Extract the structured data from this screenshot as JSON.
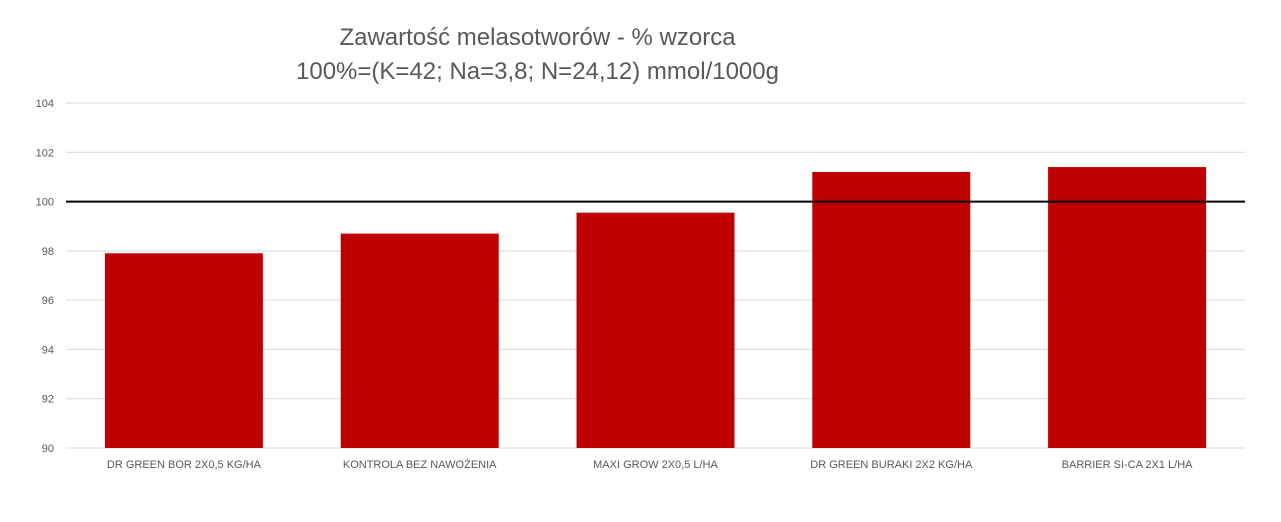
{
  "chart_data": {
    "type": "bar",
    "title": "Zawartość melasotworów - % wzorca",
    "subtitle": "100%=(K=42; Na=3,8; N=24,12) mmol/1000g",
    "categories": [
      "DR GREEN BOR 2X0,5 KG/HA",
      "KONTROLA BEZ NAWOŻENIA",
      "MAXI GROW 2X0,5 L/HA",
      "DR GREEN BURAKI 2X2 KG/HA",
      "BARRIER SI-CA 2X1 L/HA"
    ],
    "values": [
      97.9,
      98.7,
      99.55,
      101.2,
      101.4
    ],
    "ylim": [
      90,
      104
    ],
    "yticks": [
      90,
      92,
      94,
      96,
      98,
      100,
      102,
      104
    ],
    "reference_line": 100,
    "grid": true,
    "legend": "none",
    "colors": {
      "bar": "#c00000",
      "reference_line": "#000000",
      "grid": "#d9d9d9",
      "text": "#595959"
    }
  }
}
